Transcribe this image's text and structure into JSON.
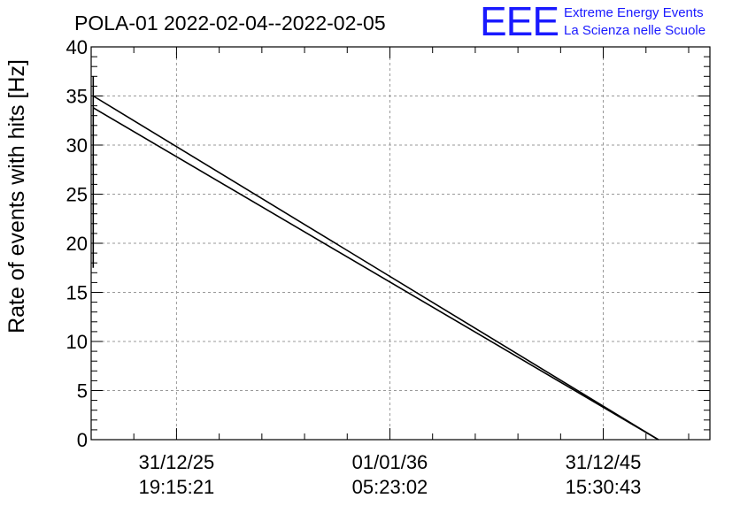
{
  "header": {
    "title": "POLA-01 2022-02-04--2022-02-05",
    "logo_text": "EEE",
    "logo_line1": "Extreme Energy Events",
    "logo_line2": "La Scienza nelle Scuole"
  },
  "colors": {
    "logo": "#1a1aff",
    "series": "#000000",
    "grid": "#999999"
  },
  "chart_data": {
    "type": "line",
    "title": "POLA-01 2022-02-04--2022-02-05",
    "xlabel": "",
    "ylabel": "Rate of events with hits [Hz]",
    "ylim": [
      0,
      40
    ],
    "yticks": [
      0,
      5,
      10,
      15,
      20,
      25,
      30,
      35,
      40
    ],
    "xlim": [
      "2021-12-31",
      "2050-12-31"
    ],
    "xticks": [
      {
        "date": "2025-12-31",
        "line1": "31/12/25",
        "line2": "19:15:21"
      },
      {
        "date": "2036-01-01",
        "line1": "01/01/36",
        "line2": "05:23:02"
      },
      {
        "date": "2045-12-31",
        "line1": "31/12/45",
        "line2": "15:30:43"
      }
    ],
    "grid": true,
    "series": [
      {
        "segments": [
          [
            {
              "x": "2022-02-04",
              "y": 17.5
            },
            {
              "x": "2022-02-04",
              "y": 37.0
            }
          ],
          [
            {
              "x": "2022-02-04",
              "y": 35.0
            },
            {
              "x": "2048-08-01",
              "y": 0
            }
          ],
          [
            {
              "x": "2022-02-04",
              "y": 33.8
            },
            {
              "x": "2048-08-01",
              "y": 0
            }
          ]
        ]
      }
    ]
  }
}
